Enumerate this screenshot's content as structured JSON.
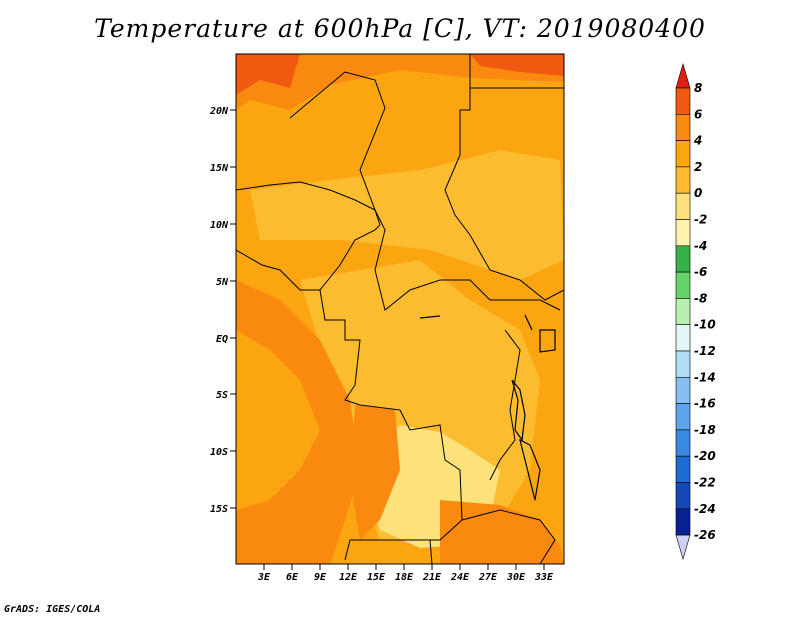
{
  "title": "Temperature at 600hPa [C], VT: 2019080400",
  "credit": "GrADS: IGES/COLA",
  "lat_labels": [
    "20N",
    "15N",
    "10N",
    "5N",
    "EQ",
    "5S",
    "10S",
    "15S"
  ],
  "lon_labels": [
    "3E",
    "6E",
    "9E",
    "12E",
    "15E",
    "18E",
    "21E",
    "24E",
    "27E",
    "30E",
    "33E"
  ],
  "colorbar": {
    "labels": [
      "8",
      "6",
      "4",
      "2",
      "0",
      "-2",
      "-4",
      "-6",
      "-8",
      "-10",
      "-12",
      "-14",
      "-16",
      "-18",
      "-20",
      "-22",
      "-24",
      "-26"
    ],
    "colors": [
      "#e02010",
      "#f05a10",
      "#f98a0f",
      "#fba510",
      "#fbbc30",
      "#fde17a",
      "#fff3b0",
      "#35b24a",
      "#66d468",
      "#b7f0b0",
      "#e3f7f6",
      "#b0dcf6",
      "#86c0f0",
      "#5fa4ec",
      "#3a88e2",
      "#1f6ad4",
      "#1448b5",
      "#0a2095",
      "#d0d0f5"
    ]
  }
}
